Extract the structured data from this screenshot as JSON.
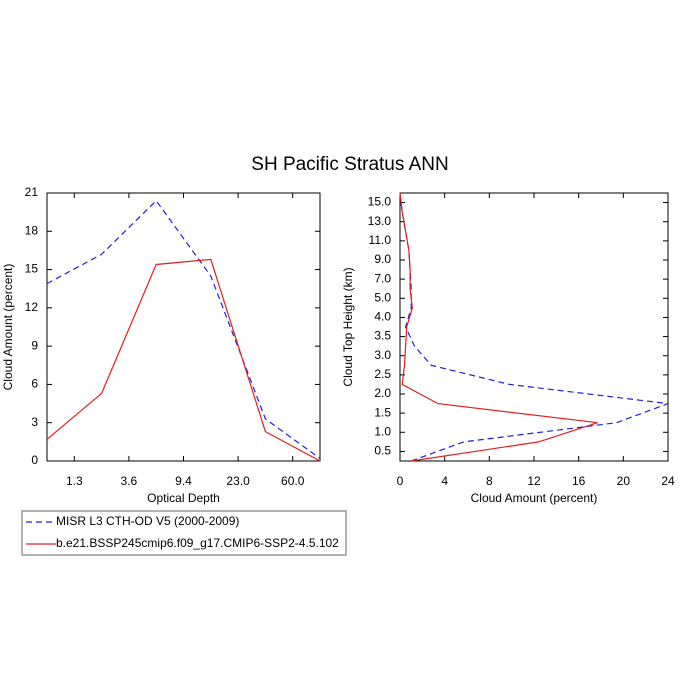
{
  "title": "SH Pacific Stratus ANN",
  "chart_data": [
    {
      "type": "line",
      "x_label": "Optical Depth",
      "y_label": "Cloud Amount (percent)",
      "x": [
        0,
        1,
        2,
        3,
        4,
        5
      ],
      "xlim": [
        0,
        5
      ],
      "xticks": [
        {
          "value": 0.5,
          "label": "1.3"
        },
        {
          "value": 1.5,
          "label": "3.6"
        },
        {
          "value": 2.5,
          "label": "9.4"
        },
        {
          "value": 3.5,
          "label": "23.0"
        },
        {
          "value": 4.5,
          "label": "60.0"
        }
      ],
      "ylim": [
        0,
        21
      ],
      "yticks": [
        0,
        3,
        6,
        9,
        12,
        15,
        18,
        21
      ],
      "series": [
        {
          "name": "MISR L3 CTH-OD V5 (2000-2009)",
          "color": "#2020e0",
          "style": "dashed",
          "values": [
            13.9,
            16.2,
            20.4,
            14.5,
            3.3,
            0.2
          ]
        },
        {
          "name": "b.e21.BSSP245cmip6.f09_g17.CMIP6-SSP2-4.5.102",
          "color": "#e02020",
          "style": "solid",
          "values": [
            1.7,
            5.3,
            15.4,
            15.8,
            2.3,
            0.0
          ]
        }
      ]
    },
    {
      "type": "line",
      "x_label": "Cloud Amount (percent)",
      "y_label": "Cloud Top Height (km)",
      "y": [
        -0.5,
        0.5,
        1.5,
        2.5,
        3.5,
        4.5,
        5.5,
        6.5,
        7.5,
        8.5,
        9.5,
        10.5,
        11.5,
        12.5,
        13.5
      ],
      "xlim": [
        0,
        24
      ],
      "xticks": [
        0,
        4,
        8,
        12,
        16,
        20,
        24
      ],
      "ylim": [
        -0.5,
        13.5
      ],
      "yticks": [
        {
          "value": 0,
          "label": "0.5"
        },
        {
          "value": 1,
          "label": "1.0"
        },
        {
          "value": 2,
          "label": "1.5"
        },
        {
          "value": 3,
          "label": "2.0"
        },
        {
          "value": 4,
          "label": "2.5"
        },
        {
          "value": 5,
          "label": "3.0"
        },
        {
          "value": 6,
          "label": "3.5"
        },
        {
          "value": 7,
          "label": "4.0"
        },
        {
          "value": 8,
          "label": "5.0"
        },
        {
          "value": 9,
          "label": "7.0"
        },
        {
          "value": 10,
          "label": "9.0"
        },
        {
          "value": 11,
          "label": "11.0"
        },
        {
          "value": 12,
          "label": "13.0"
        },
        {
          "value": 13,
          "label": "15.0"
        }
      ],
      "series": [
        {
          "name": "MISR L3 CTH-OD V5 (2000-2009)",
          "color": "#2020e0",
          "style": "dashed",
          "values": [
            1.0,
            5.7,
            19.4,
            24.0,
            9.8,
            2.8,
            1.3,
            0.5,
            1.0,
            1.0,
            0.9,
            0.8,
            0.5,
            0.2,
            0.0
          ]
        },
        {
          "name": "b.e21.BSSP245cmip6.f09_g17.CMIP6-SSP2-4.5.102",
          "color": "#e02020",
          "style": "solid",
          "values": [
            1.0,
            12.4,
            17.7,
            3.4,
            0.2,
            0.4,
            0.5,
            0.6,
            1.1,
            0.9,
            0.9,
            0.8,
            0.5,
            0.2,
            0.0
          ]
        }
      ]
    }
  ]
}
